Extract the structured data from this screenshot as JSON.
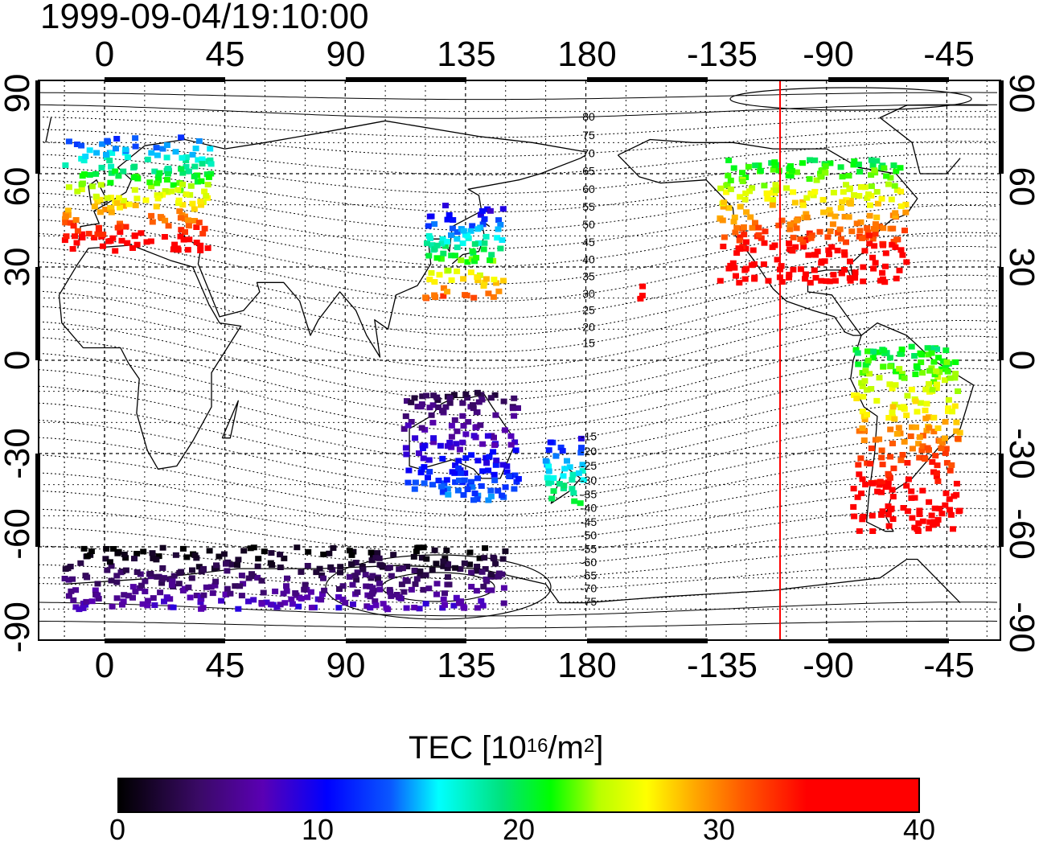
{
  "title": "1999-09-04/19:10:00",
  "lon_ticks_top": [
    "0",
    "45",
    "90",
    "135",
    "180",
    "-135",
    "-90",
    "-45"
  ],
  "lon_ticks_bottom": [
    "0",
    "45",
    "90",
    "135",
    "180",
    "-135",
    "-90",
    "-45"
  ],
  "lat_ticks_left": [
    "90",
    "60",
    "30",
    "0",
    "-30",
    "-60",
    "-90"
  ],
  "lat_ticks_right": [
    "90",
    "60",
    "30",
    "0",
    "-30",
    "-60",
    "-90"
  ],
  "contour_labels": [
    "80",
    "75",
    "70",
    "65",
    "60",
    "55",
    "50",
    "45",
    "40",
    "35",
    "30",
    "25",
    "20",
    "15",
    "-15",
    "-20",
    "-25",
    "-30",
    "-35",
    "-40",
    "-45",
    "-50",
    "-55",
    "-60",
    "-65",
    "-70",
    "-75"
  ],
  "colorbar": {
    "title_prefix": "TEC  [10",
    "title_exp1": "16",
    "title_mid": "/m",
    "title_exp2": "2",
    "title_suffix": "]",
    "labels": [
      "0",
      "10",
      "20",
      "30",
      "40"
    ],
    "range": [
      0,
      40
    ]
  },
  "colors": {
    "terminator_line": "#ff0000",
    "coastline": "#000000",
    "frame": "#000000"
  },
  "chart_data": {
    "type": "heatmap",
    "projection": "equirectangular",
    "lon_axis_center_deg": 100,
    "lat_range": [
      -90,
      90
    ],
    "variable": "TEC",
    "units": "10^16/m^2",
    "value_range": [
      0,
      40
    ],
    "marker_longitude_deg": -112,
    "regions": [
      {
        "name": "Europe",
        "lon": [
          -15,
          40
        ],
        "lat": [
          35,
          72
        ],
        "tec_range": [
          12,
          38
        ]
      },
      {
        "name": "East Asia / Japan",
        "lon": [
          120,
          150
        ],
        "lat": [
          20,
          50
        ],
        "tec_range": [
          8,
          32
        ]
      },
      {
        "name": "North America",
        "lon": [
          -130,
          -60
        ],
        "lat": [
          25,
          65
        ],
        "tec_range": [
          20,
          40
        ]
      },
      {
        "name": "South America",
        "lon": [
          -80,
          -40
        ],
        "lat": [
          -55,
          5
        ],
        "tec_range": [
          20,
          40
        ]
      },
      {
        "name": "Australia",
        "lon": [
          112,
          155
        ],
        "lat": [
          -45,
          -10
        ],
        "tec_range": [
          3,
          14
        ]
      },
      {
        "name": "New Zealand",
        "lon": [
          165,
          180
        ],
        "lat": [
          -47,
          -25
        ],
        "tec_range": [
          10,
          22
        ]
      },
      {
        "name": "Antarctica",
        "lon": [
          -15,
          150
        ],
        "lat": [
          -80,
          -60
        ],
        "tec_range": [
          0,
          8
        ]
      },
      {
        "name": "Hawaii",
        "lon": [
          -160,
          -155
        ],
        "lat": [
          18,
          24
        ],
        "tec_range": [
          36,
          40
        ]
      }
    ]
  }
}
